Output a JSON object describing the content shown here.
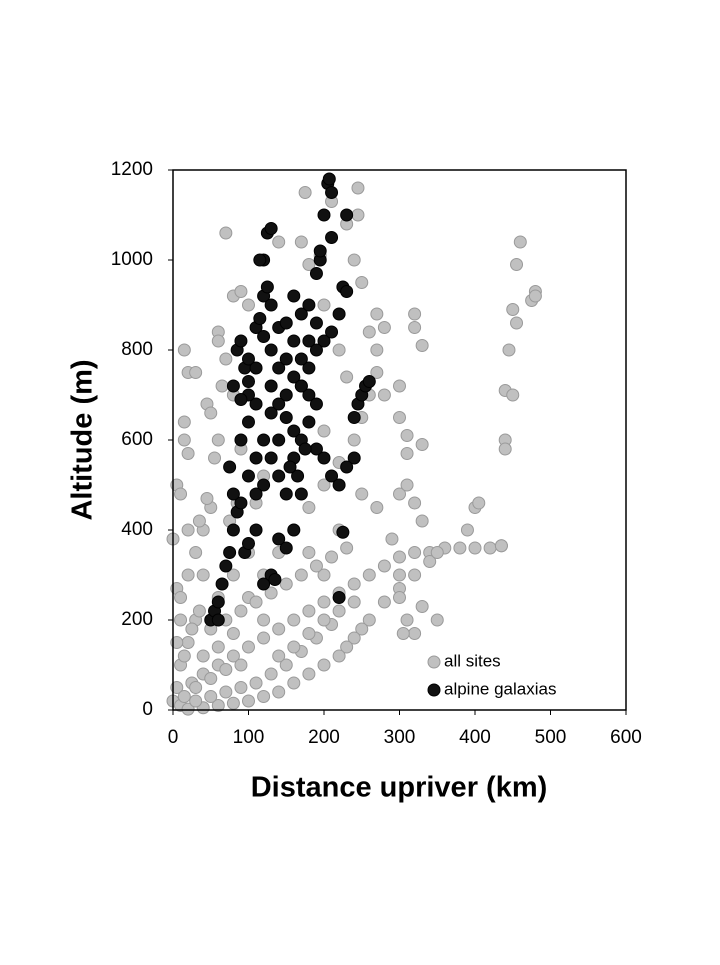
{
  "chart_data": {
    "type": "scatter",
    "xlabel": "Distance upriver (km)",
    "ylabel": "Altitude (m)",
    "xlim": [
      0,
      600
    ],
    "xticks": [
      0,
      100,
      200,
      300,
      400,
      500,
      600
    ],
    "ylim": [
      0,
      1200
    ],
    "yticks": [
      0,
      200,
      400,
      600,
      800,
      1000,
      1200
    ],
    "legend": "lower right",
    "series": [
      {
        "name": "all sites",
        "color": "#c0c0c0",
        "x": [
          0,
          5,
          10,
          15,
          20,
          30,
          15,
          15,
          20,
          5,
          10,
          20,
          30,
          40,
          50,
          45,
          50,
          60,
          60,
          70,
          80,
          90,
          100,
          70,
          65,
          55,
          40,
          30,
          20,
          10,
          5,
          0,
          10,
          25,
          40,
          60,
          80,
          100,
          120,
          140,
          160,
          180,
          200,
          220,
          240,
          260,
          280,
          300,
          320,
          340,
          360,
          380,
          400,
          420,
          435,
          340,
          320,
          300,
          280,
          260,
          250,
          240,
          230,
          220,
          200,
          180,
          160,
          140,
          120,
          100,
          80,
          60,
          40,
          20,
          150,
          170,
          190,
          210,
          130,
          110,
          90,
          70,
          50,
          30,
          100,
          120,
          140,
          160,
          180,
          200,
          220,
          240,
          250,
          260,
          270,
          280,
          270,
          240,
          245,
          245,
          210,
          175,
          170,
          140,
          230,
          250,
          270,
          280,
          300,
          300,
          310,
          320,
          320,
          330,
          310,
          330,
          300,
          320,
          330,
          310,
          250,
          270,
          290,
          320,
          305,
          330,
          300,
          350,
          400,
          405,
          390,
          435,
          440,
          440,
          440,
          445,
          450,
          450,
          455,
          455,
          460,
          475,
          480,
          480,
          350,
          310,
          200,
          220,
          180,
          60,
          80,
          90,
          85,
          75,
          110,
          120,
          200,
          230,
          220,
          260,
          200,
          195,
          180,
          300,
          120,
          60,
          80,
          100,
          20,
          35,
          45,
          10,
          5,
          15,
          25,
          35,
          50,
          70,
          90,
          110,
          130,
          150,
          170,
          190,
          210,
          230,
          140,
          160,
          180,
          200,
          220,
          240,
          90,
          70,
          50,
          30,
          15,
          60,
          40,
          80
        ],
        "values": [
          380,
          500,
          480,
          800,
          750,
          750,
          640,
          600,
          570,
          270,
          250,
          300,
          350,
          400,
          450,
          680,
          660,
          840,
          820,
          1060,
          920,
          930,
          900,
          780,
          720,
          560,
          300,
          200,
          150,
          100,
          50,
          20,
          10,
          60,
          80,
          100,
          120,
          140,
          160,
          180,
          200,
          220,
          240,
          260,
          280,
          300,
          320,
          340,
          350,
          350,
          360,
          360,
          360,
          360,
          365,
          330,
          300,
          270,
          240,
          200,
          180,
          160,
          140,
          120,
          100,
          80,
          60,
          40,
          30,
          20,
          15,
          10,
          5,
          2,
          100,
          130,
          160,
          190,
          80,
          60,
          50,
          40,
          30,
          20,
          250,
          300,
          350,
          400,
          450,
          500,
          550,
          600,
          650,
          700,
          750,
          850,
          880,
          1000,
          1100,
          1160,
          1130,
          1150,
          1040,
          1040,
          1080,
          950,
          800,
          700,
          720,
          650,
          610,
          880,
          850,
          810,
          570,
          590,
          480,
          460,
          420,
          500,
          480,
          450,
          380,
          170,
          170,
          230,
          250,
          350,
          450,
          460,
          400,
          365,
          600,
          580,
          710,
          800,
          700,
          890,
          860,
          990,
          1040,
          910,
          930,
          920,
          200,
          200,
          300,
          400,
          350,
          600,
          700,
          580,
          460,
          420,
          460,
          520,
          620,
          740,
          800,
          840,
          900,
          1010,
          990,
          300,
          200,
          250,
          300,
          350,
          400,
          420,
          470,
          200,
          150,
          120,
          180,
          220,
          180,
          200,
          220,
          240,
          260,
          280,
          300,
          320,
          340,
          360,
          120,
          140,
          170,
          200,
          220,
          240,
          100,
          90,
          70,
          50,
          30,
          140,
          120,
          170
        ]
      },
      {
        "name": "alpine galaxias",
        "color": "#111111",
        "x": [
          50,
          55,
          60,
          60,
          65,
          70,
          75,
          80,
          85,
          90,
          95,
          100,
          110,
          120,
          130,
          135,
          140,
          150,
          160,
          170,
          75,
          80,
          90,
          100,
          110,
          100,
          80,
          85,
          90,
          95,
          100,
          110,
          115,
          120,
          125,
          130,
          140,
          150,
          160,
          170,
          180,
          190,
          200,
          210,
          220,
          225,
          120,
          115,
          125,
          130,
          205,
          207,
          210,
          200,
          230,
          210,
          195,
          190,
          195,
          230,
          140,
          150,
          160,
          170,
          180,
          190,
          150,
          160,
          140,
          130,
          140,
          150,
          160,
          170,
          180,
          190,
          200,
          210,
          220,
          100,
          110,
          120,
          130,
          240,
          245,
          250,
          255,
          260,
          240,
          230,
          225,
          220,
          170,
          180,
          190,
          120,
          130,
          110,
          100,
          90,
          160,
          170,
          180,
          150,
          140,
          130,
          120,
          110,
          165,
          155,
          175
        ],
        "values": [
          200,
          220,
          200,
          240,
          280,
          320,
          350,
          400,
          440,
          460,
          350,
          370,
          400,
          280,
          300,
          290,
          380,
          360,
          400,
          480,
          540,
          480,
          600,
          640,
          680,
          700,
          720,
          800,
          820,
          760,
          780,
          850,
          870,
          920,
          940,
          900,
          850,
          860,
          920,
          880,
          900,
          860,
          820,
          840,
          880,
          940,
          1000,
          1000,
          1060,
          1070,
          1170,
          1180,
          1150,
          1100,
          1100,
          1050,
          1000,
          970,
          1020,
          930,
          760,
          780,
          740,
          720,
          700,
          680,
          650,
          620,
          600,
          560,
          520,
          480,
          560,
          600,
          640,
          580,
          560,
          520,
          500,
          520,
          560,
          600,
          660,
          650,
          680,
          700,
          720,
          730,
          560,
          540,
          395,
          250,
          720,
          760,
          800,
          830,
          800,
          760,
          730,
          690,
          820,
          780,
          820,
          700,
          680,
          720,
          500,
          480,
          520,
          540,
          580
        ]
      }
    ]
  }
}
